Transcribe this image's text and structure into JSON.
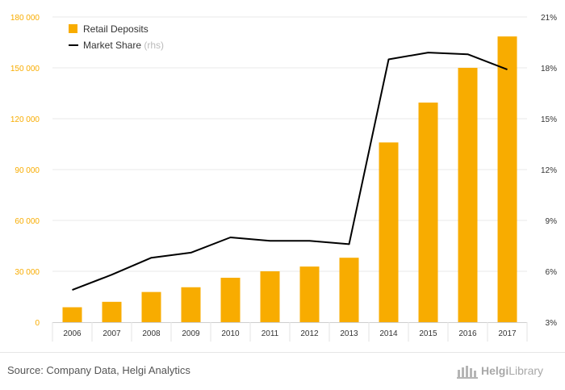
{
  "chart_data": {
    "type": "bar+line",
    "categories": [
      "2006",
      "2007",
      "2008",
      "2009",
      "2010",
      "2011",
      "2012",
      "2013",
      "2014",
      "2015",
      "2016",
      "2017"
    ],
    "series": [
      {
        "name": "Retail Deposits",
        "type": "bar",
        "axis": "left",
        "color": "#f8ac00",
        "values": [
          8800,
          12000,
          17800,
          20600,
          26200,
          30000,
          32800,
          38000,
          106000,
          129500,
          150000,
          168500
        ]
      },
      {
        "name": "Market Share",
        "name_suffix": "(rhs)",
        "type": "line",
        "axis": "right",
        "color": "#000000",
        "unit": "%",
        "values": [
          4.9,
          5.8,
          6.8,
          7.1,
          8.0,
          7.8,
          7.8,
          7.6,
          18.5,
          18.9,
          18.8,
          17.9
        ]
      }
    ],
    "y_left": {
      "ylim": [
        0,
        180000
      ],
      "ticks": [
        "0",
        "30 000",
        "60 000",
        "90 000",
        "120 000",
        "150 000",
        "180 000"
      ],
      "color": "#f8ac00"
    },
    "y_right": {
      "ylim": [
        3,
        21
      ],
      "ticks": [
        "3%",
        "6%",
        "9%",
        "12%",
        "15%",
        "18%",
        "21%"
      ]
    },
    "grid": true,
    "legend": "top-left"
  },
  "footer": {
    "source": "Source: Company Data, Helgi Analytics",
    "brand_bold": "Helgi",
    "brand_light": "Library"
  }
}
